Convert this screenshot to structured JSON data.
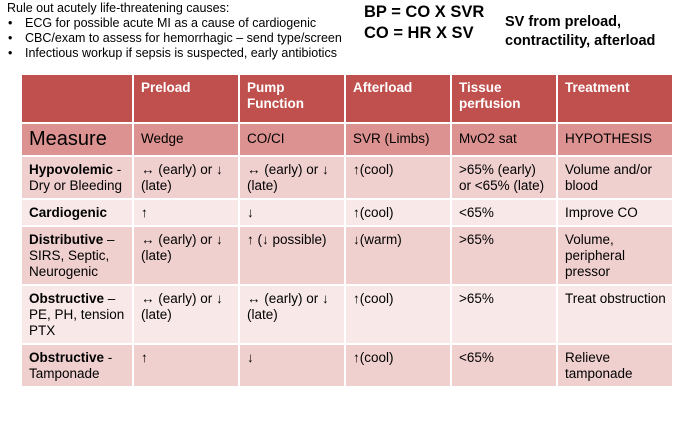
{
  "intro": {
    "heading": "Rule out  acutely life-threatening causes:",
    "bullet_glyph": "•",
    "bullets": [
      "ECG for possible acute MI as a cause of cardiogenic",
      "CBC/exam to assess  for hemorrhagic – send type/screen",
      "Infectious workup if sepsis is suspected, early antibiotics"
    ]
  },
  "formulas": {
    "line1": "BP = CO X SVR",
    "line2": "CO = HR X SV"
  },
  "sv_note": {
    "line1": "SV from preload,",
    "line2": "contractility, afterload"
  },
  "colors": {
    "header_bg": "#c0504d",
    "measure_bg": "#dc9290",
    "row_dark": "#efd0cf",
    "row_light": "#f8e8e8"
  },
  "table": {
    "headers": [
      "",
      "Preload",
      "Pump Function",
      "Afterload",
      "Tissue perfusion",
      "Treatment"
    ],
    "measure": [
      "Measure",
      "Wedge",
      "CO/CI",
      "SVR (Limbs)",
      "MvO2 sat",
      "HYPOTHESIS"
    ],
    "rows": [
      {
        "type_bold": "Hypovolemic",
        "type_rest": " - Dry or Bleeding",
        "cells": [
          "↔ (early) or ↓ (late)",
          "↔ (early) or ↓ (late)",
          "↑(cool)",
          ">65% (early) or <65% (late)",
          "Volume and/or blood"
        ]
      },
      {
        "type_bold": "Cardiogenic",
        "type_rest": "",
        "cells": [
          "↑",
          "↓",
          "↑(cool)",
          "<65%",
          "Improve CO"
        ]
      },
      {
        "type_bold": "Distributive",
        "type_rest": " – SIRS, Septic, Neurogenic",
        "cells": [
          "↔ (early) or ↓ (late)",
          "↑ (↓ possible)",
          "↓(warm)",
          ">65%",
          "Volume, peripheral pressor"
        ]
      },
      {
        "type_bold": "Obstructive",
        "type_rest": " – PE, PH, tension PTX",
        "cells": [
          "↔ (early) or ↓ (late)",
          "↔ (early) or ↓ (late)",
          "↑(cool)",
          ">65%",
          "Treat obstruction"
        ]
      },
      {
        "type_bold": "Obstructive",
        "type_rest": " - Tamponade",
        "cells": [
          "↑",
          "↓",
          "↑(cool)",
          "<65%",
          "Relieve tamponade"
        ]
      }
    ]
  }
}
